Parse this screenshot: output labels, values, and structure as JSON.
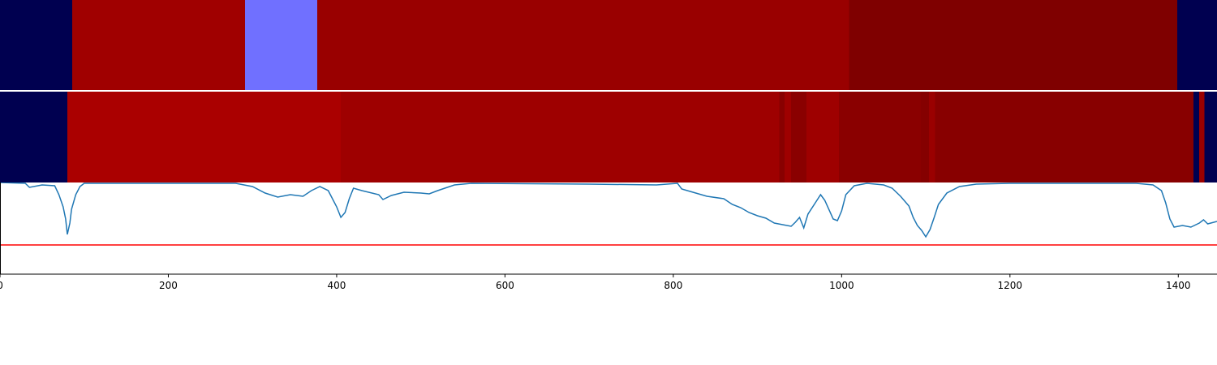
{
  "chart_data": [
    {
      "type": "bands",
      "bins": [
        0,
        86,
        291,
        377,
        1009,
        1399,
        1446
      ],
      "colors": [
        "#000050",
        "#a00000",
        "#7070ff",
        "#990000",
        "#7f0000",
        "#000050"
      ],
      "xlim": [
        0,
        1446
      ]
    },
    {
      "type": "bands",
      "bins": [
        0,
        80,
        405,
        926,
        932,
        940,
        958,
        997,
        1094,
        1104,
        1111,
        1418,
        1425,
        1431,
        1446
      ],
      "colors": [
        "#000050",
        "#aa0000",
        "#9e0000",
        "#880000",
        "#9e0000",
        "#8a0000",
        "#9e0000",
        "#8a0000",
        "#850000",
        "#9a0000",
        "#880000",
        "#000050",
        "#9a0000",
        "#000050"
      ],
      "xlim": [
        0,
        1446
      ]
    },
    {
      "type": "line",
      "x": [
        0,
        30,
        35,
        50,
        65,
        70,
        75,
        78,
        80,
        83,
        85,
        90,
        95,
        100,
        280,
        300,
        315,
        330,
        345,
        360,
        370,
        380,
        390,
        400,
        405,
        410,
        415,
        420,
        430,
        450,
        455,
        465,
        480,
        500,
        510,
        520,
        540,
        560,
        700,
        780,
        805,
        810,
        820,
        840,
        860,
        870,
        880,
        890,
        900,
        910,
        920,
        930,
        940,
        945,
        950,
        955,
        960,
        970,
        975,
        980,
        990,
        995,
        1000,
        1005,
        1015,
        1030,
        1050,
        1060,
        1070,
        1080,
        1085,
        1090,
        1095,
        1100,
        1105,
        1110,
        1115,
        1125,
        1140,
        1160,
        1200,
        1350,
        1370,
        1380,
        1385,
        1390,
        1395,
        1405,
        1415,
        1425,
        1430,
        1435,
        1446
      ],
      "series": [
        {
          "color": "#1f77b4",
          "values": [
            113,
            112,
            107,
            110,
            109,
            98,
            83,
            68,
            49,
            63,
            80,
            98,
            108,
            112,
            112,
            108,
            100,
            95,
            98,
            96,
            103,
            108,
            103,
            83,
            70,
            76,
            93,
            106,
            103,
            98,
            92,
            97,
            101,
            100,
            99,
            103,
            110,
            112,
            111,
            110,
            112,
            105,
            102,
            96,
            93,
            86,
            82,
            76,
            72,
            69,
            63,
            61,
            59,
            64,
            70,
            57,
            74,
            90,
            98,
            91,
            68,
            66,
            78,
            98,
            109,
            112,
            110,
            106,
            96,
            84,
            70,
            60,
            54,
            46,
            55,
            70,
            86,
            100,
            108,
            111,
            112,
            112,
            110,
            103,
            88,
            68,
            58,
            60,
            58,
            63,
            67,
            62,
            65
          ]
        }
      ],
      "hline": {
        "value": 36,
        "color": "#ff0000"
      },
      "xlim": [
        0,
        1446
      ],
      "ylim": [
        0,
        113
      ],
      "xticks": [
        0,
        200,
        400,
        600,
        800,
        1000,
        1200,
        1400
      ]
    }
  ]
}
